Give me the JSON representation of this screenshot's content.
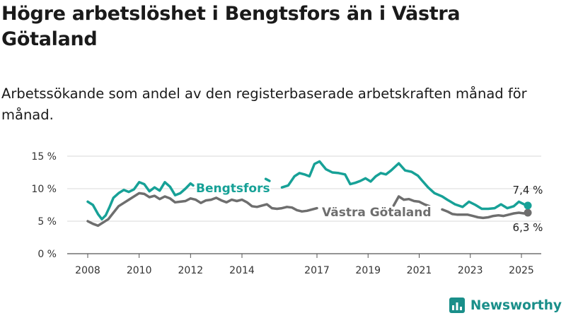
{
  "title": "Högre arbetslöshet i Bengtsfors än i Västra Götaland",
  "subtitle": "Arbetssökande som andel av den registerbaserade arbetskraften månad för månad.",
  "brand": {
    "name": "Newsworthy",
    "logo_icon": "bar-chart-icon",
    "color": "#1a8f8a"
  },
  "chart_data": {
    "type": "line",
    "y_ticks": [
      "0 %",
      "5 %",
      "10 %",
      "15 %"
    ],
    "x_ticks": [
      "2008",
      "2010",
      "2012",
      "2014",
      "2017",
      "2019",
      "2021",
      "2023",
      "2025"
    ],
    "ylim": [
      0,
      15
    ],
    "grid": true,
    "series": [
      {
        "name": "Bengtsfors",
        "color": "#17a197",
        "end_label": "7,4 %",
        "points": [
          [
            2008.0,
            8.0
          ],
          [
            2008.2,
            7.5
          ],
          [
            2008.4,
            6.1
          ],
          [
            2008.55,
            5.3
          ],
          [
            2008.7,
            5.9
          ],
          [
            2008.85,
            7.2
          ],
          [
            2009.0,
            8.6
          ],
          [
            2009.2,
            9.3
          ],
          [
            2009.4,
            9.8
          ],
          [
            2009.6,
            9.5
          ],
          [
            2009.8,
            9.9
          ],
          [
            2010.0,
            11.0
          ],
          [
            2010.2,
            10.7
          ],
          [
            2010.4,
            9.6
          ],
          [
            2010.6,
            10.2
          ],
          [
            2010.8,
            9.7
          ],
          [
            2011.0,
            11.0
          ],
          [
            2011.2,
            10.3
          ],
          [
            2011.4,
            9.0
          ],
          [
            2011.6,
            9.3
          ],
          [
            2011.8,
            10.0
          ],
          [
            2012.0,
            10.8
          ],
          [
            2012.1,
            10.5
          ],
          null,
          [
            2014.95,
            11.5
          ],
          [
            2015.1,
            11.2
          ],
          null,
          [
            2015.6,
            10.2
          ],
          [
            2015.85,
            10.5
          ],
          [
            2016.1,
            11.9
          ],
          [
            2016.3,
            12.4
          ],
          [
            2016.5,
            12.2
          ],
          [
            2016.7,
            11.9
          ],
          [
            2016.9,
            13.8
          ],
          [
            2017.1,
            14.2
          ],
          [
            2017.35,
            13.0
          ],
          [
            2017.6,
            12.5
          ],
          [
            2017.85,
            12.4
          ],
          [
            2018.1,
            12.2
          ],
          [
            2018.3,
            10.7
          ],
          [
            2018.5,
            10.9
          ],
          [
            2018.7,
            11.2
          ],
          [
            2018.9,
            11.6
          ],
          [
            2019.1,
            11.1
          ],
          [
            2019.3,
            11.9
          ],
          [
            2019.5,
            12.4
          ],
          [
            2019.7,
            12.2
          ],
          [
            2019.9,
            12.8
          ],
          [
            2020.2,
            13.9
          ],
          [
            2020.45,
            12.8
          ],
          [
            2020.7,
            12.6
          ],
          [
            2020.95,
            12.0
          ],
          [
            2021.1,
            11.3
          ],
          [
            2021.35,
            10.2
          ],
          [
            2021.6,
            9.3
          ],
          [
            2021.9,
            8.8
          ],
          [
            2022.1,
            8.3
          ],
          [
            2022.4,
            7.6
          ],
          [
            2022.7,
            7.2
          ],
          [
            2022.95,
            8.0
          ],
          [
            2023.2,
            7.5
          ],
          [
            2023.45,
            6.9
          ],
          [
            2023.7,
            6.9
          ],
          [
            2023.95,
            7.0
          ],
          [
            2024.2,
            7.6
          ],
          [
            2024.45,
            7.0
          ],
          [
            2024.7,
            7.3
          ],
          [
            2024.9,
            8.0
          ],
          [
            2025.1,
            7.6
          ],
          [
            2025.25,
            7.4
          ]
        ]
      },
      {
        "name": "Västra Götaland",
        "color": "#6e6e6e",
        "end_label": "6,3 %",
        "points": [
          [
            2008.0,
            5.0
          ],
          [
            2008.2,
            4.6
          ],
          [
            2008.4,
            4.3
          ],
          [
            2008.6,
            4.8
          ],
          [
            2008.8,
            5.3
          ],
          [
            2009.0,
            6.3
          ],
          [
            2009.2,
            7.3
          ],
          [
            2009.4,
            7.8
          ],
          [
            2009.6,
            8.3
          ],
          [
            2009.8,
            8.8
          ],
          [
            2010.0,
            9.3
          ],
          [
            2010.2,
            9.2
          ],
          [
            2010.4,
            8.7
          ],
          [
            2010.6,
            8.9
          ],
          [
            2010.8,
            8.4
          ],
          [
            2011.0,
            8.8
          ],
          [
            2011.2,
            8.5
          ],
          [
            2011.4,
            7.9
          ],
          [
            2011.6,
            8.0
          ],
          [
            2011.8,
            8.1
          ],
          [
            2012.0,
            8.5
          ],
          [
            2012.2,
            8.3
          ],
          [
            2012.4,
            7.8
          ],
          [
            2012.6,
            8.2
          ],
          [
            2012.8,
            8.3
          ],
          [
            2013.0,
            8.6
          ],
          [
            2013.2,
            8.2
          ],
          [
            2013.4,
            7.9
          ],
          [
            2013.6,
            8.3
          ],
          [
            2013.8,
            8.1
          ],
          [
            2014.0,
            8.3
          ],
          [
            2014.2,
            7.9
          ],
          [
            2014.4,
            7.3
          ],
          [
            2014.6,
            7.2
          ],
          [
            2014.8,
            7.4
          ],
          [
            2015.0,
            7.6
          ],
          [
            2015.2,
            7.0
          ],
          [
            2015.4,
            6.9
          ],
          [
            2015.6,
            7.0
          ],
          [
            2015.8,
            7.2
          ],
          [
            2016.0,
            7.1
          ],
          [
            2016.2,
            6.7
          ],
          [
            2016.4,
            6.5
          ],
          [
            2016.6,
            6.6
          ],
          [
            2016.8,
            6.8
          ],
          [
            2017.0,
            7.0
          ],
          null,
          [
            2020.0,
            7.4
          ],
          [
            2020.2,
            8.8
          ],
          [
            2020.4,
            8.3
          ],
          [
            2020.6,
            8.4
          ],
          [
            2020.8,
            8.1
          ],
          [
            2021.0,
            8.0
          ],
          [
            2021.2,
            7.6
          ],
          [
            2021.4,
            7.3
          ],
          null,
          [
            2021.9,
            6.8
          ],
          [
            2022.1,
            6.5
          ],
          [
            2022.3,
            6.1
          ],
          [
            2022.5,
            6.0
          ],
          [
            2022.7,
            6.0
          ],
          [
            2022.9,
            6.0
          ],
          [
            2023.1,
            5.8
          ],
          [
            2023.3,
            5.6
          ],
          [
            2023.5,
            5.5
          ],
          [
            2023.7,
            5.6
          ],
          [
            2023.9,
            5.8
          ],
          [
            2024.1,
            5.9
          ],
          [
            2024.3,
            5.8
          ],
          [
            2024.5,
            6.0
          ],
          [
            2024.7,
            6.2
          ],
          [
            2024.9,
            6.3
          ],
          [
            2025.1,
            6.2
          ],
          [
            2025.25,
            6.3
          ]
        ]
      }
    ]
  }
}
